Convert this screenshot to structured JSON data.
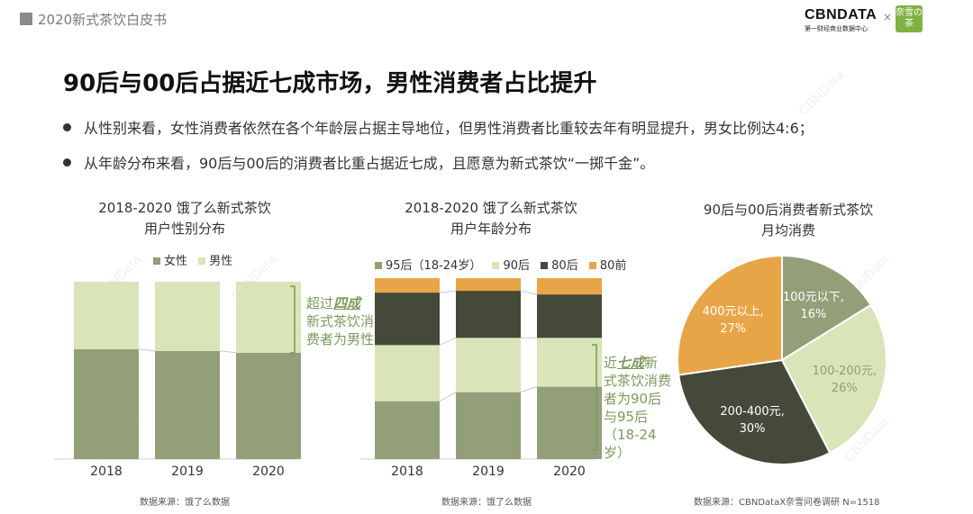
{
  "header": {
    "doc_title": "2020新式茶饮白皮书",
    "logo_cbn": "CBNDATA",
    "logo_cbn_sub": "第一财经商业数据中心",
    "logo_sep": "×",
    "logo_nx": "奈雪の茶"
  },
  "main": {
    "title": "90后与00后占据近七成市场，男性消费者占比提升",
    "bullets": [
      "从性别来看，女性消费者依然在各个年龄层占据主导地位，但男性消费者比重较去年有明显提升，男女比例达4:6；",
      "从年龄分布来看，90后与00后的消费者比重占据近七成，且愿意为新式茶饮“一掷千金”。"
    ]
  },
  "watermark": "CBNData",
  "colors": {
    "female": "#939f79",
    "male": "#d9e4b8",
    "post95": "#939f79",
    "post90": "#d9e4b8",
    "post80": "#45493a",
    "pre80": "#e8a547",
    "annot": "#7a9a5a"
  },
  "chart_data": [
    {
      "type": "bar",
      "stacked": true,
      "normalized": true,
      "title_line1": "2018-2020 饿了么新式茶饮",
      "title_line2": "用户性别分布",
      "categories": [
        "2018",
        "2019",
        "2020"
      ],
      "series": [
        {
          "name": "女性",
          "values": [
            62,
            61,
            60
          ]
        },
        {
          "name": "男性",
          "values": [
            38,
            39,
            40
          ]
        }
      ],
      "ylim": [
        0,
        100
      ],
      "annotation": {
        "pre": "超过",
        "emph": "四成",
        "post1": "新式茶饮消",
        "post2": "费者为男性"
      },
      "source": "数据来源：饿了么数据"
    },
    {
      "type": "bar",
      "stacked": true,
      "normalized": true,
      "title_line1": "2018-2020 饿了么新式茶饮",
      "title_line2": "用户年龄分布",
      "categories": [
        "2018",
        "2019",
        "2020"
      ],
      "series": [
        {
          "name": "95后（18-24岁）",
          "values": [
            32,
            37,
            40
          ]
        },
        {
          "name": "90后",
          "values": [
            31,
            30,
            27
          ]
        },
        {
          "name": "80后",
          "values": [
            29,
            26,
            24
          ]
        },
        {
          "name": "80前",
          "values": [
            8,
            7,
            9
          ]
        }
      ],
      "ylim": [
        0,
        100
      ],
      "annotation": {
        "pre": "近",
        "emph": "七成",
        "post1": "新",
        "lines": [
          "式茶饮消费",
          "者为90后",
          "与95后",
          "（18-24",
          "岁）"
        ]
      },
      "source": "数据来源：饿了么数据"
    },
    {
      "type": "pie",
      "title_line1": "90后与00后消费者新式茶饮",
      "title_line2": "月均消费",
      "slices": [
        {
          "label": "100元以下,",
          "pct_label": "16%",
          "value": 16
        },
        {
          "label": "100-200元,",
          "pct_label": "26%",
          "value": 26
        },
        {
          "label": "200-400元,",
          "pct_label": "30%",
          "value": 30
        },
        {
          "label": "400元以上,",
          "pct_label": "27%",
          "value": 27
        }
      ],
      "source": "数据来源：CBNDataX奈雪问卷调研 N=1518"
    }
  ]
}
